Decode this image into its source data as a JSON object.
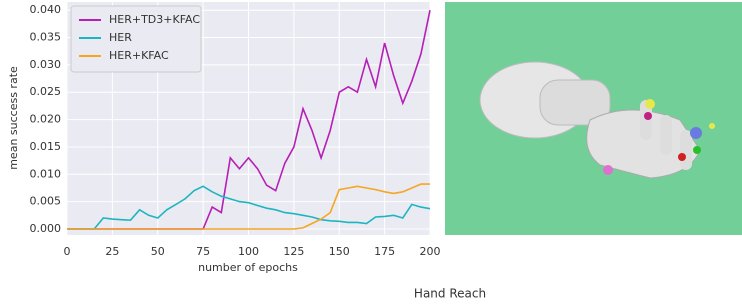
{
  "chart_data": {
    "type": "line",
    "caption": "Hand Reach",
    "xlabel": "number of epochs",
    "ylabel": "mean success rate",
    "xlim": [
      0,
      200
    ],
    "ylim": [
      -0.0011,
      0.0415
    ],
    "xticks": [
      0,
      25,
      50,
      75,
      100,
      125,
      150,
      175,
      200
    ],
    "yticks": [
      {
        "value": 0,
        "label": "0.000"
      },
      {
        "value": 0.005,
        "label": "0.005"
      },
      {
        "value": 0.01,
        "label": "0.010"
      },
      {
        "value": 0.015,
        "label": "0.015"
      },
      {
        "value": 0.02,
        "label": "0.020"
      },
      {
        "value": 0.025,
        "label": "0.025"
      },
      {
        "value": 0.03,
        "label": "0.030"
      },
      {
        "value": 0.035,
        "label": "0.035"
      },
      {
        "value": 0.04,
        "label": "0.040"
      }
    ],
    "grid": true,
    "legend": "upper left",
    "x": [
      0,
      5,
      10,
      15,
      20,
      25,
      30,
      35,
      40,
      45,
      50,
      55,
      60,
      65,
      70,
      75,
      80,
      85,
      90,
      95,
      100,
      105,
      110,
      115,
      120,
      125,
      130,
      135,
      140,
      145,
      150,
      155,
      160,
      165,
      170,
      175,
      180,
      185,
      190,
      195,
      200
    ],
    "series": [
      {
        "name": "HER+TD3+KFAC",
        "color": "#b61fb6",
        "values": [
          0,
          0,
          0,
          0,
          0,
          0,
          0,
          0,
          0,
          0,
          0,
          0,
          0,
          0,
          0,
          0,
          0.004,
          0.003,
          0.013,
          0.011,
          0.013,
          0.011,
          0.008,
          0.007,
          0.012,
          0.015,
          0.022,
          0.018,
          0.013,
          0.018,
          0.025,
          0.026,
          0.025,
          0.031,
          0.026,
          0.034,
          0.028,
          0.023,
          0.027,
          0.032,
          0.04
        ]
      },
      {
        "name": "HER",
        "color": "#1fb5c0",
        "values": [
          0,
          0,
          0,
          0,
          0.002,
          0.0018,
          0.0017,
          0.0016,
          0.0035,
          0.0025,
          0.002,
          0.0035,
          0.0045,
          0.0055,
          0.007,
          0.0078,
          0.0068,
          0.006,
          0.0055,
          0.005,
          0.0048,
          0.0043,
          0.0038,
          0.0035,
          0.003,
          0.0028,
          0.0025,
          0.0022,
          0.0017,
          0.0015,
          0.0014,
          0.0012,
          0.0012,
          0.001,
          0.0022,
          0.0023,
          0.0025,
          0.002,
          0.0045,
          0.004,
          0.0037
        ]
      },
      {
        "name": "HER+KFAC",
        "color": "#f5a623",
        "values": [
          0,
          0,
          0,
          0,
          0,
          0,
          0,
          0,
          0,
          0,
          0,
          0,
          0,
          0,
          0,
          0,
          0,
          0,
          0,
          0,
          0,
          0,
          0,
          0,
          0,
          0,
          0.0002,
          0.001,
          0.0018,
          0.003,
          0.0072,
          0.0075,
          0.0078,
          0.0075,
          0.0072,
          0.0068,
          0.0065,
          0.0068,
          0.0075,
          0.0082,
          0.0082
        ]
      }
    ]
  }
}
